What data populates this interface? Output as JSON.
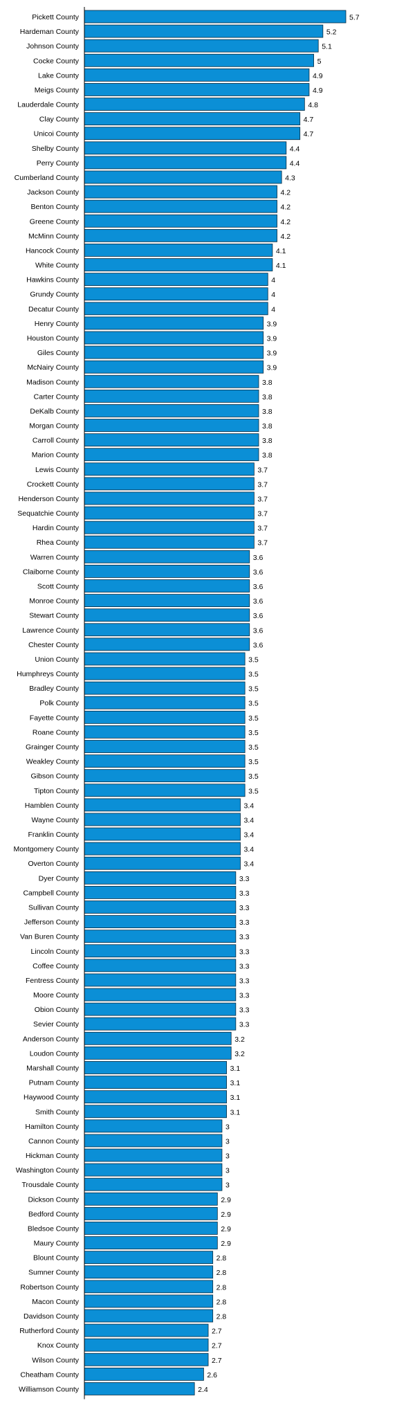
{
  "colors": {
    "bar_fill": "#0b8fd6",
    "bar_stroke": "#0a2a3f",
    "axis": "#000000",
    "background": "#ffffff"
  },
  "chart_data": {
    "type": "bar",
    "orientation": "horizontal",
    "title": "",
    "xlabel": "",
    "ylabel": "",
    "xlim": [
      0,
      5.7
    ],
    "grid": false,
    "legend": "none",
    "categories": [
      "Pickett County",
      "Hardeman County",
      "Johnson County",
      "Cocke County",
      "Lake County",
      "Meigs County",
      "Lauderdale County",
      "Clay County",
      "Unicoi County",
      "Shelby County",
      "Perry County",
      "Cumberland County",
      "Jackson County",
      "Benton County",
      "Greene County",
      "McMinn County",
      "Hancock County",
      "White County",
      "Hawkins County",
      "Grundy County",
      "Decatur County",
      "Henry County",
      "Houston County",
      "Giles County",
      "McNairy County",
      "Madison County",
      "Carter County",
      "DeKalb County",
      "Morgan County",
      "Carroll County",
      "Marion County",
      "Lewis County",
      "Crockett County",
      "Henderson County",
      "Sequatchie County",
      "Hardin County",
      "Rhea County",
      "Warren County",
      "Claiborne County",
      "Scott County",
      "Monroe County",
      "Stewart County",
      "Lawrence County",
      "Chester County",
      "Union County",
      "Humphreys County",
      "Bradley County",
      "Polk County",
      "Fayette County",
      "Roane County",
      "Grainger County",
      "Weakley County",
      "Gibson County",
      "Tipton County",
      "Hamblen County",
      "Wayne County",
      "Franklin County",
      "Montgomery County",
      "Overton County",
      "Dyer County",
      "Campbell County",
      "Sullivan County",
      "Jefferson County",
      "Van Buren County",
      "Lincoln County",
      "Coffee County",
      "Fentress County",
      "Moore County",
      "Obion County",
      "Sevier County",
      "Anderson County",
      "Loudon County",
      "Marshall County",
      "Putnam County",
      "Haywood County",
      "Smith County",
      "Hamilton County",
      "Cannon County",
      "Hickman County",
      "Washington County",
      "Trousdale County",
      "Dickson County",
      "Bedford County",
      "Bledsoe County",
      "Maury County",
      "Blount County",
      "Sumner County",
      "Robertson County",
      "Macon County",
      "Davidson County",
      "Rutherford County",
      "Knox County",
      "Wilson County",
      "Cheatham County",
      "Williamson County"
    ],
    "values": [
      5.7,
      5.2,
      5.1,
      5,
      4.9,
      4.9,
      4.8,
      4.7,
      4.7,
      4.4,
      4.4,
      4.3,
      4.2,
      4.2,
      4.2,
      4.2,
      4.1,
      4.1,
      4,
      4,
      4,
      3.9,
      3.9,
      3.9,
      3.9,
      3.8,
      3.8,
      3.8,
      3.8,
      3.8,
      3.8,
      3.7,
      3.7,
      3.7,
      3.7,
      3.7,
      3.7,
      3.6,
      3.6,
      3.6,
      3.6,
      3.6,
      3.6,
      3.6,
      3.5,
      3.5,
      3.5,
      3.5,
      3.5,
      3.5,
      3.5,
      3.5,
      3.5,
      3.5,
      3.4,
      3.4,
      3.4,
      3.4,
      3.4,
      3.3,
      3.3,
      3.3,
      3.3,
      3.3,
      3.3,
      3.3,
      3.3,
      3.3,
      3.3,
      3.3,
      3.2,
      3.2,
      3.1,
      3.1,
      3.1,
      3.1,
      3,
      3,
      3,
      3,
      3,
      2.9,
      2.9,
      2.9,
      2.9,
      2.8,
      2.8,
      2.8,
      2.8,
      2.8,
      2.7,
      2.7,
      2.7,
      2.6,
      2.4
    ],
    "value_labels": [
      "5.7",
      "5.2",
      "5.1",
      "5",
      "4.9",
      "4.9",
      "4.8",
      "4.7",
      "4.7",
      "4.4",
      "4.4",
      "4.3",
      "4.2",
      "4.2",
      "4.2",
      "4.2",
      "4.1",
      "4.1",
      "4",
      "4",
      "4",
      "3.9",
      "3.9",
      "3.9",
      "3.9",
      "3.8",
      "3.8",
      "3.8",
      "3.8",
      "3.8",
      "3.8",
      "3.7",
      "3.7",
      "3.7",
      "3.7",
      "3.7",
      "3.7",
      "3.6",
      "3.6",
      "3.6",
      "3.6",
      "3.6",
      "3.6",
      "3.6",
      "3.5",
      "3.5",
      "3.5",
      "3.5",
      "3.5",
      "3.5",
      "3.5",
      "3.5",
      "3.5",
      "3.5",
      "3.4",
      "3.4",
      "3.4",
      "3.4",
      "3.4",
      "3.3",
      "3.3",
      "3.3",
      "3.3",
      "3.3",
      "3.3",
      "3.3",
      "3.3",
      "3.3",
      "3.3",
      "3.3",
      "3.2",
      "3.2",
      "3.1",
      "3.1",
      "3.1",
      "3.1",
      "3",
      "3",
      "3",
      "3",
      "3",
      "2.9",
      "2.9",
      "2.9",
      "2.9",
      "2.8",
      "2.8",
      "2.8",
      "2.8",
      "2.8",
      "2.7",
      "2.7",
      "2.7",
      "2.6",
      "2.4"
    ]
  }
}
